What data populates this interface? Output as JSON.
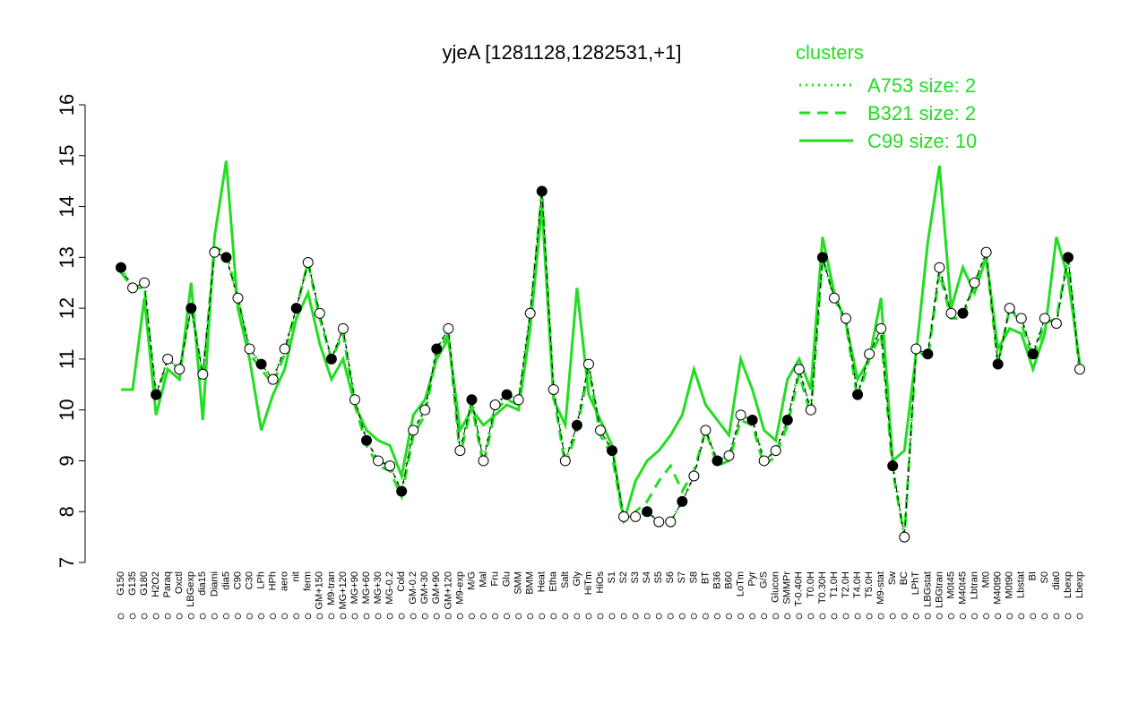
{
  "chart_data": {
    "type": "line",
    "title": "yjeA [1281128,1282531,+1]",
    "legend_title": "clusters",
    "categories": [
      "G150",
      "G135",
      "G180",
      "H2O2",
      "Paraq",
      "Oxctl",
      "LBGexp",
      "dia15",
      "Diami",
      "dia5",
      "C90",
      "C30",
      "LPh",
      "HPh",
      "aero",
      "nit",
      "ferm",
      "GM+150",
      "M9-tran",
      "MG+120",
      "MG+90",
      "MG+60",
      "MG+30",
      "MG-0.2",
      "Cold",
      "GM-0.2",
      "GM+30",
      "GM+90",
      "GM+120",
      "M9-exp",
      "M/G",
      "Mal",
      "Fru",
      "Glu",
      "SMM",
      "BMM",
      "Heat",
      "Etha",
      "Salt",
      "Gly",
      "HiTm",
      "HiOs",
      "S1",
      "S2",
      "S3",
      "S4",
      "S5",
      "S6",
      "S7",
      "S8",
      "BT",
      "B36",
      "B60",
      "LoTm",
      "Pyr",
      "G/S",
      "Glucon",
      "SMMPr",
      "T-0.40H",
      "T0.0H",
      "T0.30H",
      "T1.0H",
      "T2.0H",
      "T4.0H",
      "T5.0H",
      "M9-stat",
      "Sw",
      "BC",
      "LPhT",
      "LBGstat",
      "LBGtran",
      "M0t45",
      "M40t45",
      "Lbtran",
      "Mt0",
      "M40t90",
      "M0t90",
      "Lbstat",
      "BI",
      "S0",
      "dia0",
      "Lbexp",
      "Lbexp"
    ],
    "values": [
      12.8,
      12.4,
      12.5,
      10.3,
      11.0,
      10.8,
      12.0,
      10.7,
      13.1,
      13.0,
      12.2,
      11.2,
      10.9,
      10.6,
      11.2,
      12.0,
      12.9,
      11.9,
      11.0,
      11.6,
      10.2,
      9.4,
      9.0,
      8.9,
      8.4,
      9.6,
      10.0,
      11.2,
      11.6,
      9.2,
      10.2,
      9.0,
      10.1,
      10.3,
      10.2,
      11.9,
      14.3,
      10.4,
      9.0,
      9.7,
      10.9,
      9.6,
      9.2,
      7.9,
      7.9,
      8.0,
      7.8,
      7.8,
      8.2,
      8.7,
      9.6,
      9.0,
      9.1,
      9.9,
      9.8,
      9.0,
      9.2,
      9.8,
      10.8,
      10.0,
      13.0,
      12.2,
      11.8,
      10.3,
      11.1,
      11.6,
      8.9,
      7.5,
      11.2,
      11.1,
      12.8,
      11.9,
      11.9,
      12.5,
      13.1,
      10.9,
      12.0,
      11.8,
      11.1,
      11.8,
      11.7,
      13.0,
      10.8
    ],
    "point_color": "#000000",
    "series": [
      {
        "name": "A753 size: 2",
        "color": "#22dd22",
        "style": "dotted",
        "values": [
          12.8,
          12.4,
          12.5,
          10.3,
          11.0,
          10.8,
          12.0,
          10.7,
          13.1,
          13.0,
          12.2,
          11.2,
          10.9,
          10.6,
          11.2,
          12.0,
          12.9,
          11.9,
          11.0,
          11.6,
          10.2,
          9.4,
          9.0,
          8.9,
          8.4,
          9.6,
          10.0,
          11.2,
          11.6,
          9.2,
          10.2,
          9.0,
          10.1,
          10.3,
          10.2,
          11.9,
          14.3,
          10.4,
          9.0,
          9.7,
          10.9,
          9.6,
          9.2,
          7.9,
          7.9,
          8.0,
          7.8,
          7.8,
          8.2,
          8.7,
          9.6,
          9.0,
          9.1,
          9.9,
          9.8,
          9.0,
          9.2,
          9.8,
          10.8,
          10.0,
          13.0,
          12.2,
          11.8,
          10.3,
          11.1,
          11.6,
          8.9,
          7.5,
          11.2,
          11.1,
          12.8,
          11.9,
          11.9,
          12.5,
          13.1,
          10.9,
          12.0,
          11.8,
          11.1,
          11.8,
          11.7,
          13.0,
          10.8
        ]
      },
      {
        "name": "B321 size: 2",
        "color": "#22dd22",
        "style": "dashed",
        "values": [
          12.7,
          12.4,
          12.4,
          10.2,
          11.0,
          10.7,
          12.1,
          10.6,
          13.2,
          13.1,
          12.2,
          11.1,
          10.8,
          10.5,
          11.1,
          12.0,
          12.9,
          11.8,
          11.0,
          11.5,
          10.1,
          9.3,
          8.9,
          8.8,
          8.3,
          9.5,
          9.9,
          11.1,
          11.5,
          9.1,
          10.1,
          8.9,
          10.0,
          10.2,
          10.1,
          11.8,
          14.3,
          10.3,
          8.9,
          9.6,
          10.8,
          9.5,
          9.1,
          7.8,
          8.0,
          8.2,
          8.6,
          8.9,
          8.4,
          8.8,
          9.6,
          8.9,
          9.0,
          9.8,
          9.7,
          8.9,
          9.1,
          9.7,
          10.7,
          9.9,
          13.0,
          12.2,
          11.7,
          10.2,
          11.0,
          11.5,
          8.8,
          7.5,
          11.2,
          11.0,
          12.7,
          11.8,
          11.8,
          12.5,
          13.0,
          10.9,
          12.0,
          11.7,
          11.0,
          11.7,
          11.8,
          13.0,
          10.7
        ]
      },
      {
        "name": "C99 size: 10",
        "color": "#22dd22",
        "style": "solid",
        "values": [
          10.4,
          10.4,
          12.2,
          9.9,
          10.8,
          10.6,
          12.5,
          9.8,
          13.4,
          14.9,
          12.0,
          11.0,
          9.6,
          10.3,
          10.8,
          11.8,
          12.3,
          11.3,
          10.6,
          11.0,
          10.1,
          9.6,
          9.4,
          9.3,
          8.7,
          9.9,
          10.2,
          11.0,
          11.4,
          9.6,
          10.0,
          9.7,
          9.9,
          10.1,
          10.0,
          11.6,
          14.0,
          10.2,
          9.7,
          12.4,
          10.3,
          9.8,
          9.3,
          7.8,
          8.6,
          9.0,
          9.2,
          9.5,
          9.9,
          10.8,
          10.1,
          9.8,
          9.5,
          11.0,
          10.4,
          9.6,
          9.4,
          10.6,
          11.0,
          10.4,
          13.4,
          12.3,
          11.7,
          10.6,
          11.0,
          12.2,
          9.0,
          9.2,
          11.1,
          13.3,
          14.8,
          12.0,
          12.8,
          12.3,
          13.0,
          11.2,
          11.6,
          11.5,
          10.8,
          11.5,
          13.4,
          12.6,
          10.9
        ]
      }
    ],
    "ylim": [
      7,
      16
    ],
    "yticks": [
      7,
      8,
      9,
      10,
      11,
      12,
      13,
      14,
      15,
      16
    ]
  }
}
